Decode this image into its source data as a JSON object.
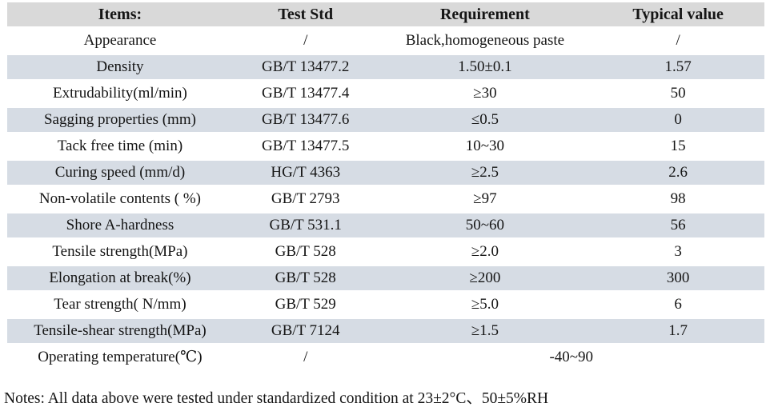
{
  "colors": {
    "page_bg": "#ffffff",
    "text": "#151515",
    "header_bg": "#d9d9d9",
    "shaded_row_bg": "#d6dce4"
  },
  "table": {
    "headers": [
      "Items:",
      "Test Std",
      "Requirement",
      "Typical value"
    ],
    "rows": [
      {
        "item": "Appearance",
        "test_std": "/",
        "requirement": "Black,homogeneous paste",
        "typical_value": "/",
        "merged": false
      },
      {
        "item": "Density",
        "test_std": "GB/T 13477.2",
        "requirement": "1.50±0.1",
        "typical_value": "1.57",
        "merged": false
      },
      {
        "item": "Extrudability(ml/min)",
        "test_std": "GB/T 13477.4",
        "requirement": "≥30",
        "typical_value": "50",
        "merged": false
      },
      {
        "item": "Sagging properties (mm)",
        "test_std": "GB/T 13477.6",
        "requirement": "≤0.5",
        "typical_value": "0",
        "merged": false
      },
      {
        "item": "Tack free time (min)",
        "test_std": "GB/T 13477.5",
        "requirement": "10~30",
        "typical_value": "15",
        "merged": false
      },
      {
        "item": "Curing speed (mm/d)",
        "test_std": "HG/T 4363",
        "requirement": "≥2.5",
        "typical_value": "2.6",
        "merged": false
      },
      {
        "item": "Non-volatile contents ( %)",
        "test_std": "GB/T 2793",
        "requirement": "≥97",
        "typical_value": "98",
        "merged": false
      },
      {
        "item": "Shore A-hardness",
        "test_std": "GB/T 531.1",
        "requirement": "50~60",
        "typical_value": "56",
        "merged": false
      },
      {
        "item": "Tensile strength(MPa)",
        "test_std": "GB/T 528",
        "requirement": "≥2.0",
        "typical_value": "3",
        "merged": false
      },
      {
        "item": "Elongation at break(%)",
        "test_std": "GB/T 528",
        "requirement": "≥200",
        "typical_value": "300",
        "merged": false
      },
      {
        "item": "Tear strength( N/mm)",
        "test_std": "GB/T 529",
        "requirement": "≥5.0",
        "typical_value": "6",
        "merged": false
      },
      {
        "item": "Tensile-shear strength(MPa)",
        "test_std": "GB/T 7124",
        "requirement": "≥1.5",
        "typical_value": "1.7",
        "merged": false
      },
      {
        "item": "Operating temperature(℃)",
        "test_std": "/",
        "requirement": "-40~90",
        "typical_value": null,
        "merged": true
      }
    ]
  },
  "notes": "Notes: All data above were tested under standardized condition at 23±2°C、50±5%RH"
}
